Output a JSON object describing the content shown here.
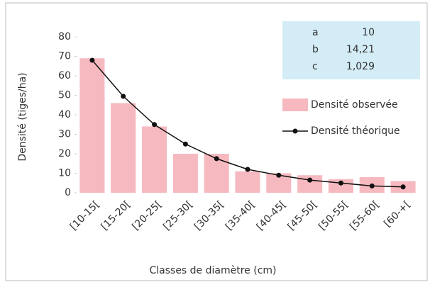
{
  "chart_data": {
    "type": "bar",
    "x_label": "Classes de diamètre (cm)",
    "y_label": "Densité (tiges/ha)",
    "categories": [
      "[10-15[",
      "[15-20[",
      "[20-25[",
      "[25-30[",
      "[30-35[",
      "[35-40[",
      "[40-45[",
      "[45-50[",
      "[50-55[",
      "[55-60[",
      "[60-+["
    ],
    "series": [
      {
        "name": "Densité observée",
        "type": "bar",
        "color": "#f6b9c0",
        "values": [
          69,
          46,
          34,
          20,
          20,
          11,
          10,
          9,
          7,
          8,
          6
        ]
      },
      {
        "name": "Densité théorique",
        "type": "line",
        "color": "#111111",
        "values": [
          68,
          49.5,
          35,
          25,
          17.5,
          12,
          9,
          6.5,
          5,
          3.5,
          3
        ]
      }
    ],
    "ylim": [
      0,
      80
    ],
    "yticks": [
      0,
      10,
      20,
      30,
      40,
      50,
      60,
      70,
      80
    ],
    "parameters": [
      {
        "name": "a",
        "value": "10"
      },
      {
        "name": "b",
        "value": "14,21"
      },
      {
        "name": "c",
        "value": "1,029"
      }
    ]
  }
}
